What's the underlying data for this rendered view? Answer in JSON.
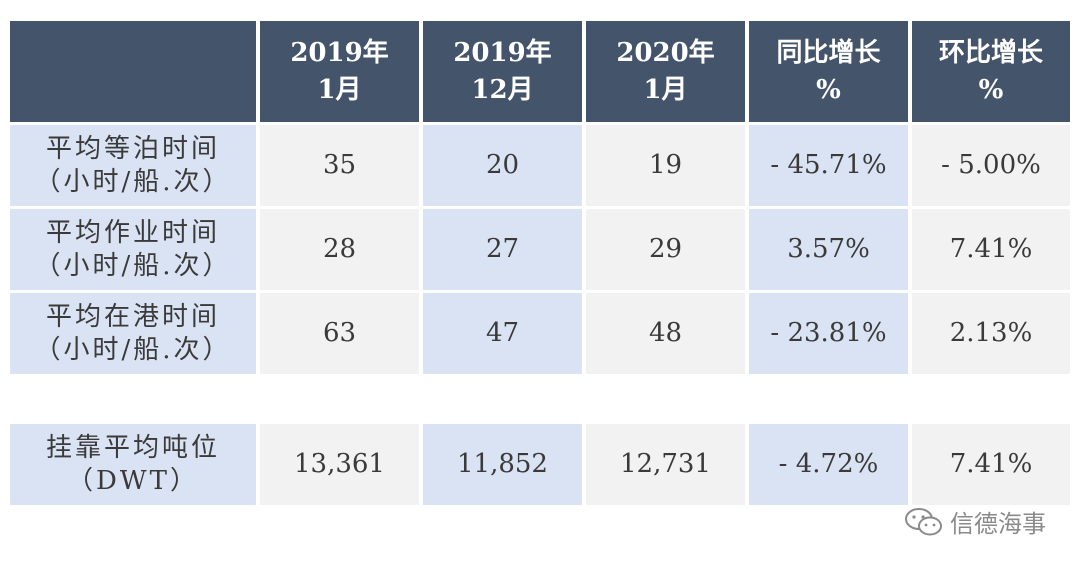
{
  "table": {
    "headers": [
      "",
      "2019年\n1月",
      "2019年\n12月",
      "2020年\n1月",
      "同比增长\n%",
      "环比增长\n%"
    ],
    "rows": [
      {
        "label": "平均等泊时间\n（小时/船.次）",
        "values": [
          "35",
          "20",
          "19",
          "- 45.71%",
          "- 5.00%"
        ]
      },
      {
        "label": "平均作业时间\n（小时/船.次）",
        "values": [
          "28",
          "27",
          "29",
          "3.57%",
          "7.41%"
        ]
      },
      {
        "label": "平均在港时间\n（小时/船.次）",
        "values": [
          "63",
          "47",
          "48",
          "- 23.81%",
          "2.13%"
        ]
      },
      {
        "label": "挂靠平均吨位\n（DWT）",
        "values": [
          "13,361",
          "11,852",
          "12,731",
          "- 4.72%",
          "7.41%"
        ]
      }
    ]
  },
  "watermark": {
    "text": "信德海事",
    "icon": "wechat-icon"
  },
  "colors": {
    "header_bg": "#44546a",
    "label_bg": "#dae3f3",
    "alt_bg": "#f2f2f2"
  }
}
